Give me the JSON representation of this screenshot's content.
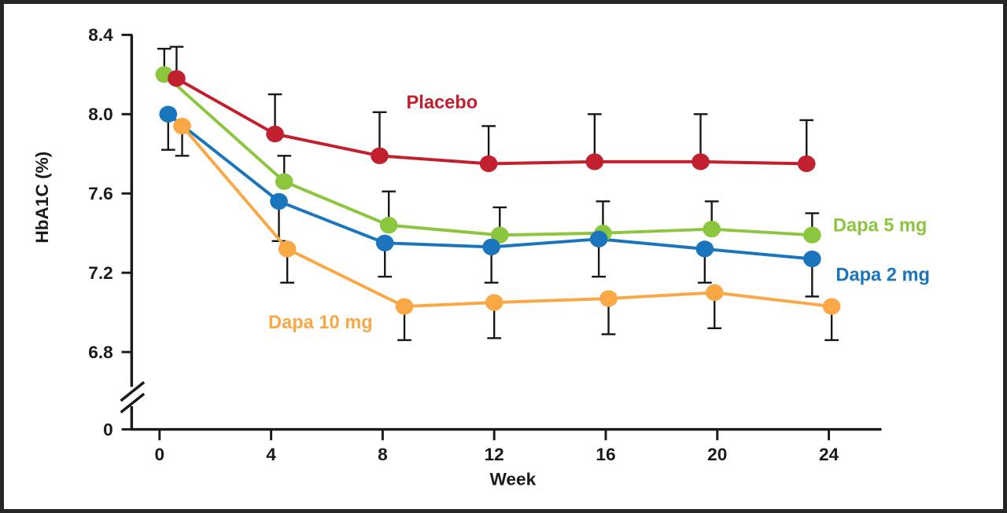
{
  "page": {
    "background": "#ffffff",
    "frame_border": "#262626"
  },
  "chart_data": {
    "type": "line",
    "title": "",
    "xlabel": "Week",
    "ylabel": "HbA1C (%)",
    "axis_color": "#1a1a1a",
    "error_bar_color": "#161616",
    "grid": false,
    "legend_position": "inline-annotations",
    "xlim": [
      0,
      24
    ],
    "ylim_display": [
      6.8,
      8.4
    ],
    "y_axis_break": true,
    "x": [
      0,
      4,
      8,
      12,
      16,
      20,
      24
    ],
    "x_ticks": [
      {
        "value": 0,
        "label": "0"
      },
      {
        "value": 4,
        "label": "4"
      },
      {
        "value": 8,
        "label": "8"
      },
      {
        "value": 12,
        "label": "12"
      },
      {
        "value": 16,
        "label": "16"
      },
      {
        "value": 20,
        "label": "20"
      },
      {
        "value": 24,
        "label": "24"
      }
    ],
    "y_ticks": [
      {
        "value": 8.4,
        "label": "8.4"
      },
      {
        "value": 8.0,
        "label": "8.0"
      },
      {
        "value": 7.6,
        "label": "7.6"
      },
      {
        "value": 7.2,
        "label": "7.2"
      },
      {
        "value": 6.8,
        "label": "6.8"
      },
      {
        "value": 0,
        "label": "0"
      }
    ],
    "series": [
      {
        "name": "Dapa 5 mg",
        "color": "#8cc63f",
        "error_dir": "up",
        "x_plot": [
          0.17,
          4.47,
          8.22,
          12.2,
          15.9,
          19.8,
          23.4
        ],
        "values": [
          8.2,
          7.66,
          7.44,
          7.39,
          7.4,
          7.42,
          7.39
        ],
        "errors": [
          0.13,
          0.13,
          0.17,
          0.14,
          0.16,
          0.14,
          0.11
        ]
      },
      {
        "name": "Dapa 2 mg",
        "color": "#1b75bc",
        "error_dir": "down",
        "x_plot": [
          0.31,
          4.28,
          8.08,
          11.9,
          15.75,
          19.55,
          23.4
        ],
        "values": [
          8.0,
          7.56,
          7.35,
          7.33,
          7.37,
          7.32,
          7.27
        ],
        "errors": [
          0.18,
          0.2,
          0.17,
          0.18,
          0.19,
          0.17,
          0.19
        ]
      },
      {
        "name": "Placebo",
        "color": "#c2202f",
        "error_dir": "up",
        "x_plot": [
          0.61,
          4.14,
          7.89,
          11.8,
          15.6,
          19.4,
          23.2
        ],
        "values": [
          8.18,
          7.9,
          7.79,
          7.75,
          7.76,
          7.76,
          7.75
        ],
        "errors": [
          0.16,
          0.2,
          0.22,
          0.19,
          0.24,
          0.24,
          0.22
        ]
      },
      {
        "name": "Dapa 10 mg",
        "color": "#f9a845",
        "error_dir": "down",
        "x_plot": [
          0.81,
          4.58,
          8.78,
          12.0,
          16.1,
          19.9,
          24.1
        ],
        "values": [
          7.94,
          7.32,
          7.03,
          7.05,
          7.07,
          7.1,
          7.03
        ],
        "errors": [
          0.15,
          0.17,
          0.17,
          0.18,
          0.18,
          0.18,
          0.17
        ]
      }
    ],
    "annotations": [
      {
        "text": "Placebo",
        "color": "#c2202f",
        "week": 8.85,
        "value": 8.06,
        "anchor": "start"
      },
      {
        "text": "Dapa 5 mg",
        "color": "#8cc63f",
        "week": 24.15,
        "value": 7.44,
        "anchor": "start"
      },
      {
        "text": "Dapa 2 mg",
        "color": "#1b75bc",
        "week": 24.25,
        "value": 7.19,
        "anchor": "start"
      },
      {
        "text": "Dapa 10 mg",
        "color": "#f9a845",
        "week": 3.9,
        "value": 6.95,
        "anchor": "start"
      }
    ]
  }
}
